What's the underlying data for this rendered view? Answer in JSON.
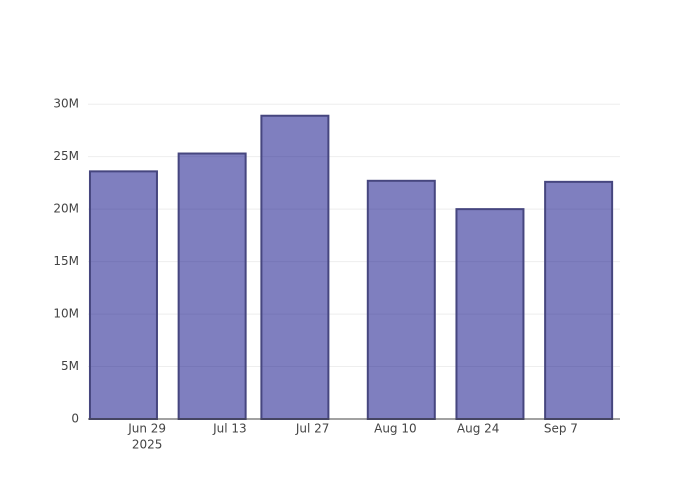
{
  "chart_data": {
    "type": "bar",
    "x": [
      "2025-06-25",
      "2025-07-10",
      "2025-07-24",
      "2025-08-11",
      "2025-08-26",
      "2025-09-10"
    ],
    "values": [
      23600000,
      25300000,
      28900000,
      22700000,
      20000000,
      22600000
    ],
    "color": "rgba(0,0,128,0.5)",
    "edge_color": "#46467f",
    "xlim": [
      "2025-06-19",
      "2025-09-17"
    ],
    "xticks": [
      {
        "value": "2025-06-29",
        "label": "Jun 29",
        "sublabel": "2025"
      },
      {
        "value": "2025-07-13",
        "label": "Jul 13"
      },
      {
        "value": "2025-07-27",
        "label": "Jul 27"
      },
      {
        "value": "2025-08-10",
        "label": "Aug 10"
      },
      {
        "value": "2025-08-24",
        "label": "Aug 24"
      },
      {
        "value": "2025-09-07",
        "label": "Sep 7"
      }
    ],
    "ylim": [
      0,
      30400000
    ],
    "yticks": [
      0,
      {
        "value": 5000000,
        "label": "5M"
      },
      {
        "value": 10000000,
        "label": "10M"
      },
      {
        "value": 15000000,
        "label": "15M"
      },
      {
        "value": 20000000,
        "label": "20M"
      },
      {
        "value": 25000000,
        "label": "25M"
      },
      {
        "value": 30000000,
        "label": "30M"
      }
    ],
    "grid": true
  }
}
